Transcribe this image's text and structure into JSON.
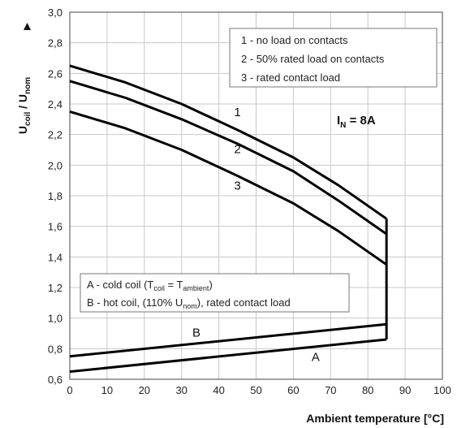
{
  "chart_data": {
    "type": "line",
    "xlabel": "Ambient temperature [°C]",
    "ylabel": {
      "main": "U",
      "sub1": "coil",
      "mid": " / U",
      "sub2": "nom"
    },
    "xlim": [
      0,
      100
    ],
    "ylim": [
      0.6,
      3.0
    ],
    "xticks": [
      "0",
      "10",
      "20",
      "30",
      "40",
      "50",
      "60",
      "70",
      "80",
      "90",
      "100"
    ],
    "yticks": [
      "0,6",
      "0,8",
      "1,0",
      "1,2",
      "1,4",
      "1,6",
      "1,8",
      "2,0",
      "2,2",
      "2,4",
      "2,6",
      "2,8",
      "3,0"
    ],
    "grid": true,
    "series": [
      {
        "name": "1",
        "x": [
          0,
          15,
          30,
          45,
          60,
          72,
          85
        ],
        "values": [
          2.65,
          2.54,
          2.4,
          2.23,
          2.05,
          1.87,
          1.65
        ]
      },
      {
        "name": "2",
        "x": [
          0,
          15,
          30,
          45,
          60,
          72,
          85
        ],
        "values": [
          2.55,
          2.44,
          2.3,
          2.14,
          1.96,
          1.77,
          1.55
        ]
      },
      {
        "name": "3",
        "x": [
          0,
          15,
          30,
          45,
          60,
          72,
          85
        ],
        "values": [
          2.35,
          2.24,
          2.1,
          1.93,
          1.75,
          1.57,
          1.35
        ]
      },
      {
        "name": "B",
        "x": [
          0,
          85
        ],
        "values": [
          0.75,
          0.96
        ]
      },
      {
        "name": "A",
        "x": [
          0,
          85
        ],
        "values": [
          0.65,
          0.86
        ]
      }
    ],
    "vertical_segment": {
      "x": 85,
      "y": [
        0.86,
        1.65
      ]
    },
    "curve_labels": [
      {
        "text": "1",
        "x": 45,
        "y": 2.32
      },
      {
        "text": "2",
        "x": 45,
        "y": 2.08
      },
      {
        "text": "3",
        "x": 45,
        "y": 1.84
      },
      {
        "text": "B",
        "x": 34,
        "y": 0.88
      },
      {
        "text": "A",
        "x": 66,
        "y": 0.72
      }
    ],
    "legend_top": [
      "1 -  no load on contacts",
      "2 -  50% rated load on contacts",
      "3 -  rated contact load"
    ],
    "legend_bottom": {
      "a": {
        "prefix": "A -  cold coil (T",
        "sub1": "coil",
        "mid": " = T",
        "sub2": "ambient",
        "suffix": ")"
      },
      "b": {
        "prefix": "B -  hot coil, (110% U",
        "sub1": "nom",
        "suffix": "), rated contact load"
      }
    },
    "parameter": {
      "main": "I",
      "sub": "N",
      "suffix": " = 8A"
    }
  }
}
